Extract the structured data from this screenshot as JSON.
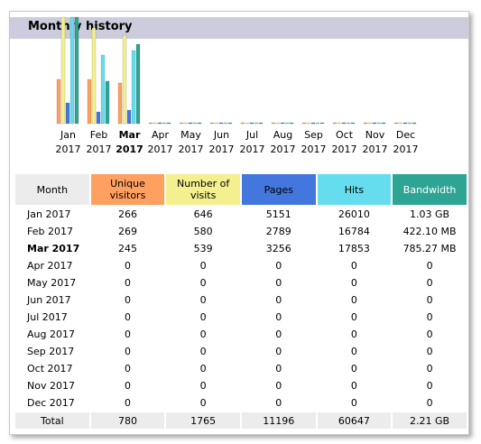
{
  "section_title": "Monthly history",
  "colors": {
    "unique_visitors": "#ffa060",
    "number_of_visits": "#f4f090",
    "pages": "#4477dd",
    "hits": "#66ddee",
    "bandwidth": "#2ea495",
    "header_bg": "#ccccdd"
  },
  "table": {
    "headers": {
      "month": "Month",
      "unique_visitors": "Unique visitors",
      "number_of_visits": "Number of visits",
      "pages": "Pages",
      "hits": "Hits",
      "bandwidth": "Bandwidth"
    },
    "rows": [
      {
        "month": "Jan 2017",
        "unique": "266",
        "visits": "646",
        "pages": "5151",
        "hits": "26010",
        "bandwidth": "1.03 GB"
      },
      {
        "month": "Feb 2017",
        "unique": "269",
        "visits": "580",
        "pages": "2789",
        "hits": "16784",
        "bandwidth": "422.10 MB"
      },
      {
        "month": "Mar 2017",
        "unique": "245",
        "visits": "539",
        "pages": "3256",
        "hits": "17853",
        "bandwidth": "785.27 MB",
        "current": true
      },
      {
        "month": "Apr 2017",
        "unique": "0",
        "visits": "0",
        "pages": "0",
        "hits": "0",
        "bandwidth": "0"
      },
      {
        "month": "May 2017",
        "unique": "0",
        "visits": "0",
        "pages": "0",
        "hits": "0",
        "bandwidth": "0"
      },
      {
        "month": "Jun 2017",
        "unique": "0",
        "visits": "0",
        "pages": "0",
        "hits": "0",
        "bandwidth": "0"
      },
      {
        "month": "Jul 2017",
        "unique": "0",
        "visits": "0",
        "pages": "0",
        "hits": "0",
        "bandwidth": "0"
      },
      {
        "month": "Aug 2017",
        "unique": "0",
        "visits": "0",
        "pages": "0",
        "hits": "0",
        "bandwidth": "0"
      },
      {
        "month": "Sep 2017",
        "unique": "0",
        "visits": "0",
        "pages": "0",
        "hits": "0",
        "bandwidth": "0"
      },
      {
        "month": "Oct 2017",
        "unique": "0",
        "visits": "0",
        "pages": "0",
        "hits": "0",
        "bandwidth": "0"
      },
      {
        "month": "Nov 2017",
        "unique": "0",
        "visits": "0",
        "pages": "0",
        "hits": "0",
        "bandwidth": "0"
      },
      {
        "month": "Dec 2017",
        "unique": "0",
        "visits": "0",
        "pages": "0",
        "hits": "0",
        "bandwidth": "0"
      }
    ],
    "total": {
      "label": "Total",
      "unique": "780",
      "visits": "1765",
      "pages": "11196",
      "hits": "60647",
      "bandwidth": "2.21 GB"
    }
  },
  "chart_data": {
    "type": "bar",
    "categories": [
      "Jan",
      "Feb",
      "Mar",
      "Apr",
      "May",
      "Jun",
      "Jul",
      "Aug",
      "Sep",
      "Oct",
      "Nov",
      "Dec"
    ],
    "year_labels": [
      "2017",
      "2017",
      "2017",
      "2017",
      "2017",
      "2017",
      "2017",
      "2017",
      "2017",
      "2017",
      "2017",
      "2017"
    ],
    "highlight_category": "Mar",
    "series": [
      {
        "name": "Unique visitors",
        "color": "#ffa060",
        "values": [
          266,
          269,
          245,
          0,
          0,
          0,
          0,
          0,
          0,
          0,
          0,
          0
        ]
      },
      {
        "name": "Number of visits",
        "color": "#f4f090",
        "values": [
          646,
          580,
          539,
          0,
          0,
          0,
          0,
          0,
          0,
          0,
          0,
          0
        ]
      },
      {
        "name": "Pages",
        "color": "#4477dd",
        "values": [
          5151,
          2789,
          3256,
          0,
          0,
          0,
          0,
          0,
          0,
          0,
          0,
          0
        ]
      },
      {
        "name": "Hits",
        "color": "#66ddee",
        "values": [
          26010,
          16784,
          17853,
          0,
          0,
          0,
          0,
          0,
          0,
          0,
          0,
          0
        ]
      },
      {
        "name": "Bandwidth (MB)",
        "color": "#2ea495",
        "values": [
          1054.72,
          422.1,
          785.27,
          0,
          0,
          0,
          0,
          0,
          0,
          0,
          0,
          0
        ]
      }
    ],
    "scale_groups": [
      {
        "series": [
          0,
          1
        ]
      },
      {
        "series": [
          2,
          3
        ]
      },
      {
        "series": [
          4
        ]
      }
    ]
  }
}
